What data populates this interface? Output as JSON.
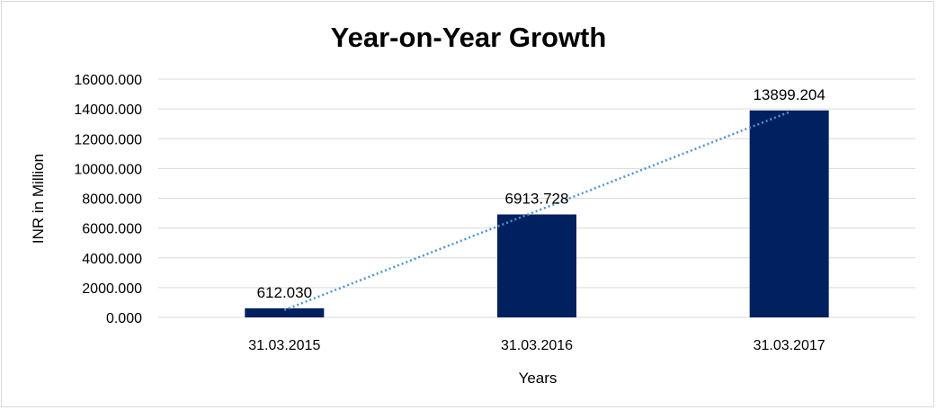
{
  "chart_data": {
    "type": "bar",
    "title": "Year-on-Year Growth",
    "xlabel": "Years",
    "ylabel": "INR in Million",
    "categories": [
      "31.03.2015",
      "31.03.2016",
      "31.03.2017"
    ],
    "values": [
      612.03,
      6913.728,
      13899.204
    ],
    "data_labels": [
      "612.030",
      "6913.728",
      "13899.204"
    ],
    "yticks": [
      "0.000",
      "2000.000",
      "4000.000",
      "6000.000",
      "8000.000",
      "10000.000",
      "12000.000",
      "14000.000",
      "16000.000"
    ],
    "ylim": [
      0,
      16000
    ],
    "grid": true,
    "legend": "none",
    "trendline": "linear",
    "colors": {
      "bar": "#002060",
      "trendline": "#4f95cf",
      "grid": "#d9d9d9"
    }
  }
}
